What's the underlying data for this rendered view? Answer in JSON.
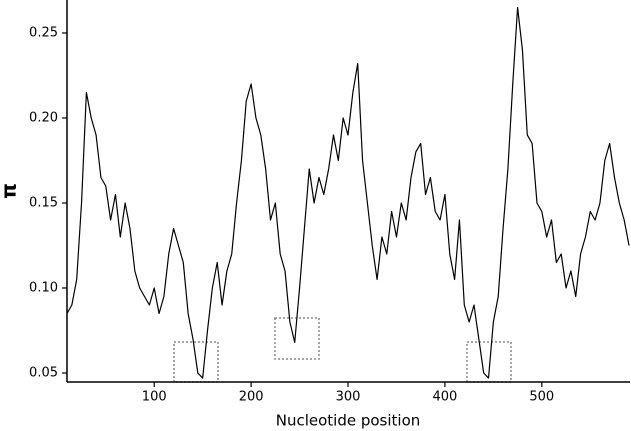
{
  "chart_data": {
    "type": "line",
    "xlabel": "Nucleotide position",
    "ylabel": "π",
    "x": [
      10,
      15,
      20,
      25,
      30,
      35,
      40,
      45,
      50,
      55,
      60,
      65,
      70,
      75,
      80,
      85,
      90,
      95,
      100,
      105,
      110,
      115,
      120,
      125,
      130,
      135,
      140,
      145,
      150,
      155,
      160,
      165,
      170,
      175,
      180,
      185,
      190,
      195,
      200,
      205,
      210,
      215,
      220,
      225,
      230,
      235,
      240,
      245,
      250,
      255,
      260,
      265,
      270,
      275,
      280,
      285,
      290,
      295,
      300,
      305,
      310,
      315,
      320,
      325,
      330,
      335,
      340,
      345,
      350,
      355,
      360,
      365,
      370,
      375,
      380,
      385,
      390,
      395,
      400,
      405,
      410,
      415,
      420,
      425,
      430,
      435,
      440,
      445,
      450,
      455,
      460,
      465,
      470,
      475,
      480,
      485,
      490,
      495,
      500,
      505,
      510,
      515,
      520,
      525,
      530,
      535,
      540,
      545,
      550,
      555,
      560,
      565,
      570,
      575,
      580,
      585,
      590
    ],
    "series": [
      {
        "name": "π",
        "color": "#000000",
        "values": [
          0.085,
          0.09,
          0.105,
          0.15,
          0.215,
          0.2,
          0.19,
          0.165,
          0.16,
          0.14,
          0.155,
          0.13,
          0.15,
          0.135,
          0.11,
          0.1,
          0.095,
          0.09,
          0.1,
          0.085,
          0.095,
          0.12,
          0.135,
          0.125,
          0.115,
          0.085,
          0.07,
          0.05,
          0.047,
          0.075,
          0.1,
          0.115,
          0.09,
          0.11,
          0.12,
          0.15,
          0.175,
          0.21,
          0.22,
          0.2,
          0.19,
          0.17,
          0.14,
          0.15,
          0.12,
          0.11,
          0.08,
          0.068,
          0.1,
          0.135,
          0.17,
          0.15,
          0.165,
          0.155,
          0.17,
          0.19,
          0.175,
          0.2,
          0.19,
          0.215,
          0.232,
          0.175,
          0.15,
          0.125,
          0.105,
          0.13,
          0.12,
          0.145,
          0.13,
          0.15,
          0.14,
          0.165,
          0.18,
          0.185,
          0.155,
          0.165,
          0.145,
          0.14,
          0.155,
          0.12,
          0.105,
          0.14,
          0.09,
          0.08,
          0.09,
          0.07,
          0.05,
          0.047,
          0.08,
          0.095,
          0.135,
          0.17,
          0.22,
          0.265,
          0.24,
          0.19,
          0.185,
          0.15,
          0.145,
          0.13,
          0.14,
          0.115,
          0.12,
          0.1,
          0.11,
          0.095,
          0.12,
          0.13,
          0.145,
          0.14,
          0.15,
          0.175,
          0.185,
          0.165,
          0.15,
          0.14,
          0.125
        ]
      }
    ],
    "xlim": [
      10,
      591
    ],
    "xticks": [
      100,
      200,
      300,
      400,
      500
    ],
    "ylim": [
      0.0447,
      0.2694
    ],
    "yticks": [
      0.05,
      {
        "value": 0.1,
        "label": "0.10"
      },
      0.15,
      {
        "value": 0.2,
        "label": "0.20"
      },
      0.25
    ]
  }
}
